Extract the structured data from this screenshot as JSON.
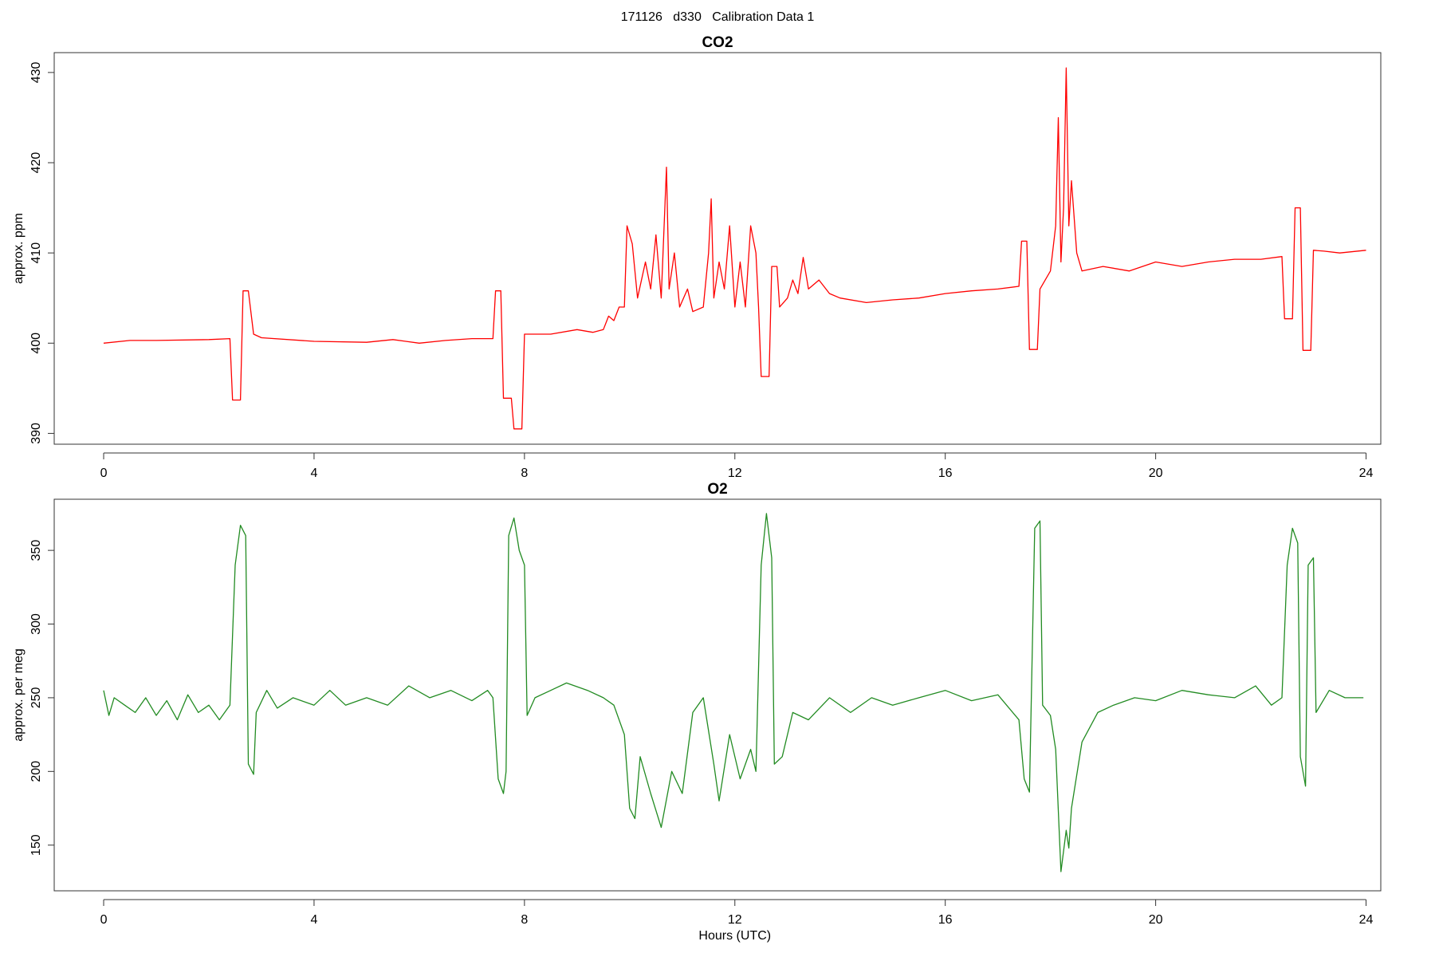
{
  "title": "171126   d330   Calibration Data 1",
  "chart_data": [
    {
      "type": "line",
      "title": "CO2",
      "ylabel": "approx. ppm",
      "color": "#ff0000",
      "xlim": [
        -0.94,
        24.28
      ],
      "xticks": [
        0,
        4,
        8,
        12,
        16,
        20,
        24
      ],
      "ylim": [
        388.8,
        432.2
      ],
      "yticks": [
        390,
        400,
        410,
        420,
        430
      ],
      "x": [
        0,
        0.5,
        1,
        2,
        2.4,
        2.45,
        2.6,
        2.65,
        2.75,
        2.85,
        3,
        4,
        5,
        5.5,
        6,
        6.5,
        7,
        7.4,
        7.45,
        7.55,
        7.6,
        7.75,
        7.8,
        7.95,
        8,
        8.5,
        9,
        9.3,
        9.5,
        9.6,
        9.7,
        9.8,
        9.9,
        9.95,
        10.05,
        10.15,
        10.3,
        10.4,
        10.5,
        10.6,
        10.7,
        10.75,
        10.85,
        10.95,
        11.1,
        11.2,
        11.4,
        11.5,
        11.55,
        11.6,
        11.7,
        11.8,
        11.9,
        12,
        12.1,
        12.2,
        12.3,
        12.4,
        12.45,
        12.5,
        12.65,
        12.7,
        12.8,
        12.85,
        13,
        13.1,
        13.2,
        13.3,
        13.4,
        13.6,
        13.8,
        14,
        14.5,
        15,
        15.5,
        16,
        16.5,
        17,
        17.4,
        17.45,
        17.55,
        17.6,
        17.75,
        17.8,
        18,
        18.1,
        18.15,
        18.2,
        18.25,
        18.3,
        18.35,
        18.4,
        18.5,
        18.6,
        19,
        19.5,
        20,
        20.5,
        21,
        21.5,
        22,
        22.4,
        22.45,
        22.6,
        22.65,
        22.75,
        22.8,
        22.95,
        23,
        23.2,
        23.5,
        24
      ],
      "values": [
        400,
        400.3,
        400.3,
        400.4,
        400.5,
        393.7,
        393.7,
        405.8,
        405.8,
        401,
        400.6,
        400.2,
        400.1,
        400.4,
        400,
        400.3,
        400.5,
        400.5,
        405.8,
        405.8,
        393.9,
        393.9,
        390.5,
        390.5,
        401,
        401,
        401.5,
        401.2,
        401.5,
        403,
        402.5,
        404,
        404,
        413,
        411,
        405,
        409,
        406,
        412,
        405,
        419.5,
        406,
        410,
        404,
        406,
        403.5,
        404,
        410,
        416,
        405,
        409,
        406,
        413,
        404,
        409,
        404,
        413,
        410,
        404,
        396.3,
        396.3,
        408.5,
        408.5,
        404,
        405,
        407,
        405.5,
        409.5,
        406,
        407,
        405.5,
        405,
        404.5,
        404.8,
        405,
        405.5,
        405.8,
        406,
        406.3,
        411.3,
        411.3,
        399.3,
        399.3,
        406,
        408,
        413,
        425,
        409,
        415,
        430.5,
        413,
        418,
        410,
        408,
        408.5,
        408,
        409,
        408.5,
        409,
        409.3,
        409.3,
        409.6,
        402.7,
        402.7,
        415,
        415,
        399.2,
        399.2,
        410.3,
        410.2,
        410,
        410.3
      ]
    },
    {
      "type": "line",
      "title": "O2",
      "ylabel": "approx. per meg",
      "xlabel": "Hours (UTC)",
      "color": "#228b22",
      "xlim": [
        -0.94,
        24.28
      ],
      "xticks": [
        0,
        4,
        8,
        12,
        16,
        20,
        24
      ],
      "ylim": [
        119,
        384.7
      ],
      "yticks": [
        150,
        200,
        250,
        300,
        350
      ],
      "x": [
        0,
        0.1,
        0.2,
        0.4,
        0.6,
        0.8,
        1,
        1.2,
        1.4,
        1.6,
        1.8,
        2,
        2.2,
        2.4,
        2.5,
        2.6,
        2.7,
        2.75,
        2.85,
        2.9,
        3.1,
        3.3,
        3.6,
        4,
        4.3,
        4.6,
        5,
        5.4,
        5.8,
        6.2,
        6.6,
        7,
        7.3,
        7.4,
        7.5,
        7.6,
        7.65,
        7.7,
        7.8,
        7.9,
        8,
        8.05,
        8.2,
        8.5,
        8.8,
        9.2,
        9.5,
        9.7,
        9.9,
        10,
        10.1,
        10.2,
        10.4,
        10.6,
        10.8,
        11,
        11.2,
        11.4,
        11.6,
        11.7,
        11.9,
        12.1,
        12.3,
        12.4,
        12.5,
        12.6,
        12.7,
        12.75,
        12.9,
        13.1,
        13.4,
        13.8,
        14.2,
        14.6,
        15,
        15.5,
        16,
        16.5,
        17,
        17.4,
        17.5,
        17.6,
        17.7,
        17.8,
        17.85,
        18,
        18.1,
        18.2,
        18.3,
        18.35,
        18.4,
        18.6,
        18.9,
        19.2,
        19.6,
        20,
        20.5,
        21,
        21.5,
        21.9,
        22.2,
        22.4,
        22.5,
        22.6,
        22.7,
        22.75,
        22.85,
        22.9,
        23,
        23.05,
        23.3,
        23.6,
        23.95
      ],
      "values": [
        255,
        238,
        250,
        245,
        240,
        250,
        238,
        248,
        235,
        252,
        240,
        245,
        235,
        245,
        340,
        367,
        360,
        205,
        198,
        240,
        255,
        243,
        250,
        245,
        255,
        245,
        250,
        245,
        258,
        250,
        255,
        248,
        255,
        250,
        195,
        185,
        200,
        360,
        372,
        350,
        340,
        238,
        250,
        255,
        260,
        255,
        250,
        245,
        225,
        175,
        168,
        210,
        185,
        162,
        200,
        185,
        240,
        250,
        205,
        180,
        225,
        195,
        215,
        200,
        340,
        375,
        345,
        205,
        210,
        240,
        235,
        250,
        240,
        250,
        245,
        250,
        255,
        248,
        252,
        235,
        195,
        186,
        365,
        370,
        245,
        238,
        215,
        132,
        160,
        148,
        175,
        220,
        240,
        245,
        250,
        248,
        255,
        252,
        250,
        258,
        245,
        250,
        340,
        365,
        355,
        210,
        190,
        340,
        345,
        240,
        255,
        250,
        250
      ]
    }
  ]
}
